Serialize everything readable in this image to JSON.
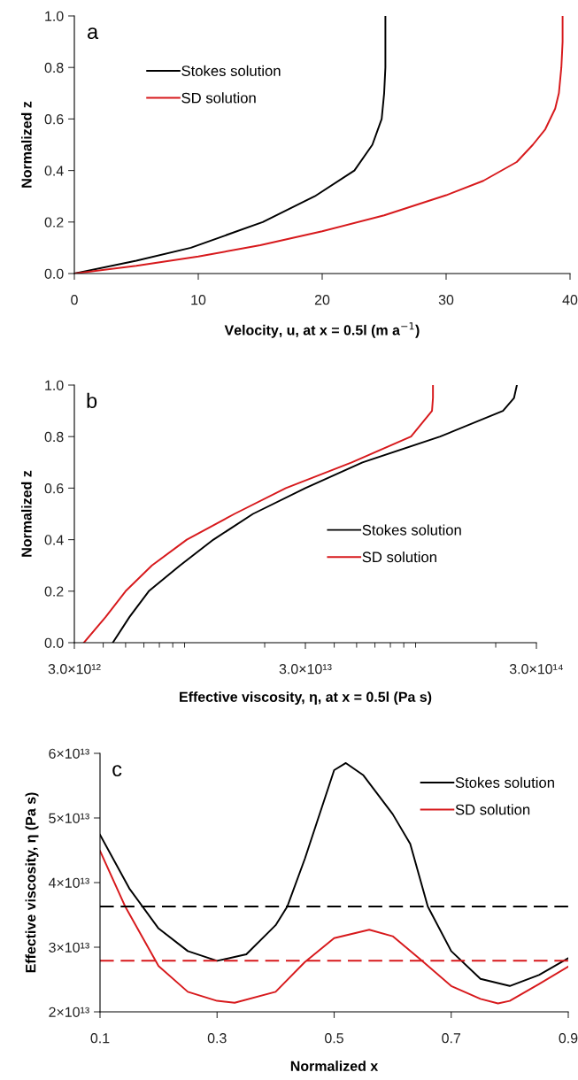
{
  "chart_data": [
    {
      "type": "line",
      "xlabel": "Velocity, u, at x = 0.5l (m a$^{−1}$)",
      "ylabel": "Normalized z",
      "annotations": [
        "a"
      ],
      "xlim": [
        0,
        40
      ],
      "xticks": [
        0,
        10,
        20,
        30,
        40
      ],
      "ylim": [
        0,
        1.0
      ],
      "yticks": [
        {
          "value": 0,
          "label": "0.0"
        },
        0.2,
        0.4,
        0.6,
        0.8,
        {
          "value": 1.0,
          "label": "1.0"
        }
      ],
      "grid": false,
      "legend": "top left",
      "series": [
        {
          "name": "Stokes solution",
          "color": "#000000",
          "x": [
            0,
            5,
            9.4,
            15.2,
            19.4,
            22.6,
            24.05,
            24.8,
            25.0,
            25.1,
            25.1
          ],
          "values": [
            0,
            0.05,
            0.1,
            0.2,
            0.3,
            0.4,
            0.5,
            0.6,
            0.7,
            0.8,
            1.0
          ]
        },
        {
          "name": "SD solution",
          "color": "#d7191c",
          "x": [
            0,
            5,
            10,
            15,
            20,
            25,
            30,
            33,
            35.7,
            37,
            38,
            38.8,
            39.1,
            39.3,
            39.4,
            39.4
          ],
          "values": [
            0,
            0.03,
            0.066,
            0.11,
            0.164,
            0.226,
            0.304,
            0.36,
            0.433,
            0.5,
            0.56,
            0.64,
            0.7,
            0.8,
            0.9,
            1.0
          ]
        }
      ]
    },
    {
      "type": "line",
      "xlabel": "Effective viscosity, η, at x = 0.5l (Pa s)",
      "ylabel": "Normalized z",
      "annotations": [
        "b"
      ],
      "log": "x",
      "xlim": [
        3000000000000.0,
        300000000000000.0
      ],
      "xticks": [
        {
          "value": 3000000000000.0,
          "label": "3.0×10¹²"
        },
        {
          "value": 30000000000000.0,
          "label": "3.0×10¹³"
        },
        {
          "value": 300000000000000.0,
          "label": "3.0×10¹⁴"
        }
      ],
      "ylim": [
        0,
        1.0
      ],
      "yticks": [
        {
          "value": 0,
          "label": "0.0"
        },
        0.2,
        0.4,
        0.6,
        0.8,
        {
          "value": 1.0,
          "label": "1.0"
        }
      ],
      "grid": false,
      "legend": "right",
      "series": [
        {
          "name": "Stokes solution",
          "color": "#000000",
          "x": [
            4400000000000.0,
            5200000000000.0,
            6300000000000.0,
            8600000000000.0,
            12000000000000.0,
            17800000000000.0,
            30000000000000.0,
            53000000000000.0,
            115000000000000.0,
            215000000000000.0,
            240000000000000.0,
            247000000000000.0
          ],
          "values": [
            0,
            0.1,
            0.2,
            0.3,
            0.4,
            0.5,
            0.6,
            0.7,
            0.8,
            0.9,
            0.95,
            1.0
          ]
        },
        {
          "name": "SD solution",
          "color": "#d7191c",
          "x": [
            3300000000000.0,
            4100000000000.0,
            5000000000000.0,
            6500000000000.0,
            9200000000000.0,
            14800000000000.0,
            24700000000000.0,
            47600000000000.0,
            86000000000000.0,
            106000000000000.0,
            107000000000000.0,
            107000000000000.0
          ],
          "values": [
            0,
            0.1,
            0.2,
            0.3,
            0.4,
            0.5,
            0.6,
            0.7,
            0.8,
            0.9,
            0.95,
            1.0
          ]
        }
      ]
    },
    {
      "type": "line",
      "xlabel": "Normalized x",
      "ylabel": "Effective viscosity, η (Pa s)",
      "annotations": [
        "c"
      ],
      "xlim": [
        0.1,
        0.9
      ],
      "xticks": [
        0.1,
        0.3,
        0.5,
        0.7,
        0.9
      ],
      "ylim": [
        20000000000000.0,
        60000000000000.0
      ],
      "yticks": [
        {
          "value": 20000000000000.0,
          "label": "2×10¹³"
        },
        {
          "value": 30000000000000.0,
          "label": "3×10¹³"
        },
        {
          "value": 40000000000000.0,
          "label": "4×10¹³"
        },
        {
          "value": 50000000000000.0,
          "label": "5×10¹³"
        },
        {
          "value": 60000000000000.0,
          "label": "6×10¹³"
        }
      ],
      "grid": false,
      "legend": "top right",
      "ref_lines": [
        {
          "axis": "y",
          "value": 36300000000000.0,
          "color": "#000000",
          "line_style": "dashed"
        },
        {
          "axis": "y",
          "value": 27900000000000.0,
          "color": "#d7191c",
          "line_style": "dashed"
        }
      ],
      "series": [
        {
          "name": "Stokes solution",
          "color": "#000000",
          "x": [
            0.1,
            0.15,
            0.2,
            0.25,
            0.3,
            0.35,
            0.4,
            0.42,
            0.45,
            0.5,
            0.52,
            0.55,
            0.6,
            0.63,
            0.66,
            0.7,
            0.75,
            0.8,
            0.85,
            0.9
          ],
          "values": [
            47400000000000.0,
            39100000000000.0,
            32900000000000.0,
            29400000000000.0,
            27900000000000.0,
            28900000000000.0,
            33400000000000.0,
            36300000000000.0,
            43700000000000.0,
            57400000000000.0,
            58500000000000.0,
            56600000000000.0,
            50600000000000.0,
            46000000000000.0,
            36300000000000.0,
            29400000000000.0,
            25100000000000.0,
            24000000000000.0,
            25700000000000.0,
            28300000000000.0
          ]
        },
        {
          "name": "SD solution",
          "color": "#d7191c",
          "x": [
            0.1,
            0.143,
            0.2,
            0.25,
            0.3,
            0.33,
            0.4,
            0.45,
            0.5,
            0.56,
            0.6,
            0.65,
            0.7,
            0.75,
            0.78,
            0.8,
            0.85,
            0.9
          ],
          "values": [
            44900000000000.0,
            36300000000000.0,
            27100000000000.0,
            23100000000000.0,
            21700000000000.0,
            21400000000000.0,
            23100000000000.0,
            27700000000000.0,
            31400000000000.0,
            32700000000000.0,
            31700000000000.0,
            27900000000000.0,
            24000000000000.0,
            22000000000000.0,
            21300000000000.0,
            21700000000000.0,
            24300000000000.0,
            27000000000000.0
          ]
        }
      ]
    }
  ]
}
